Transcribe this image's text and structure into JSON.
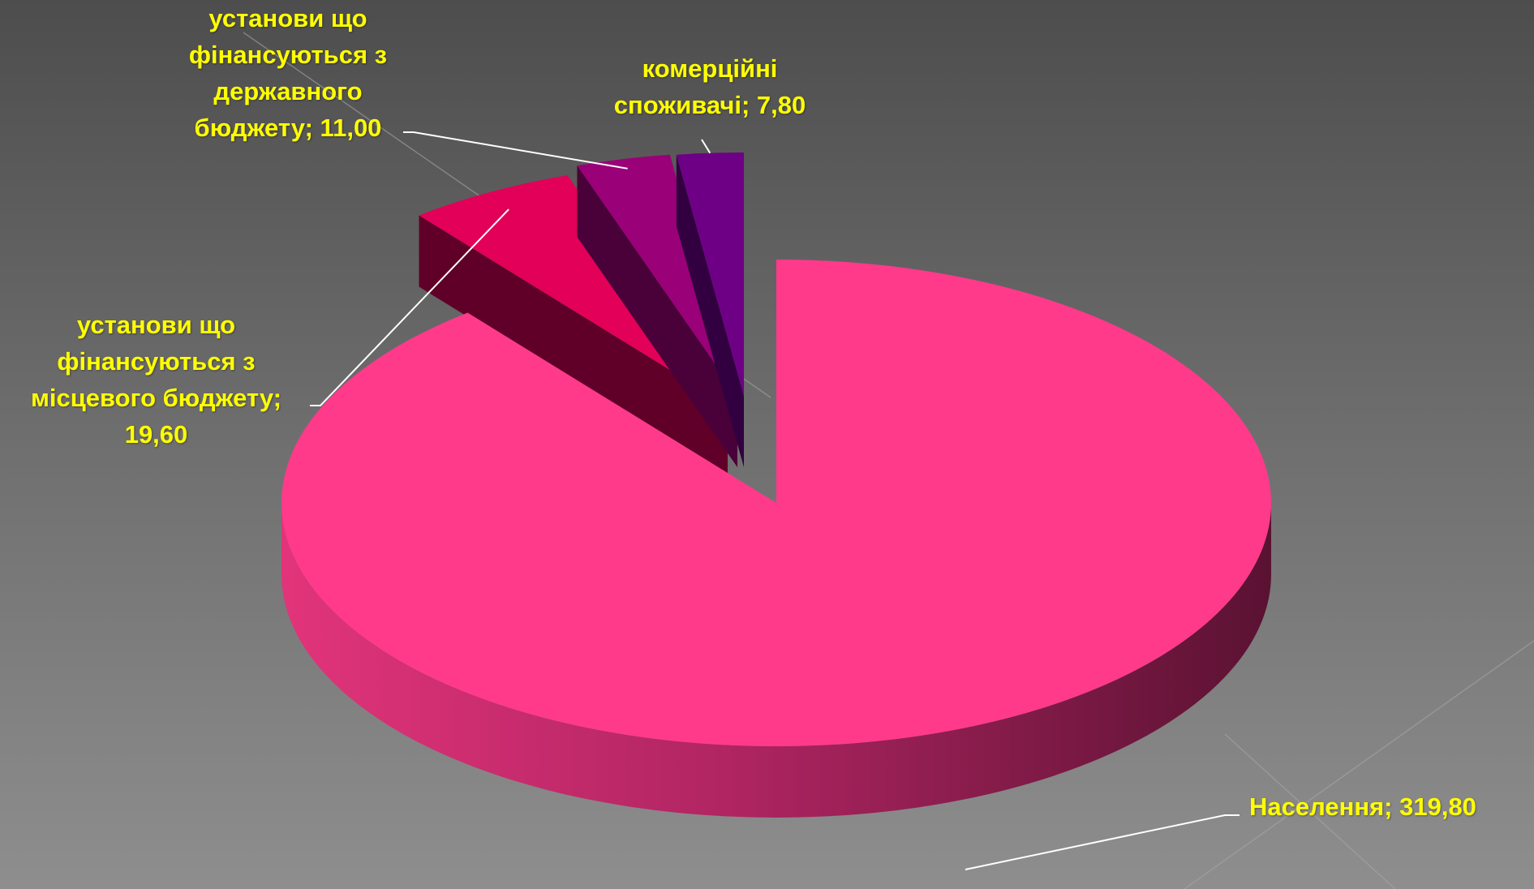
{
  "chart_data": {
    "type": "pie",
    "variant": "3d-exploded",
    "categories": [
      "Населення",
      "установи що фінансуються з місцевого бюджету",
      "установи що фінансуються з державного бюджету",
      "комерційні споживачі"
    ],
    "values": [
      319.8,
      19.6,
      11.0,
      7.8
    ],
    "data_labels": [
      [
        "Населення; 319,80"
      ],
      [
        "установи що",
        "фінансуються з",
        "місцевого бюджету;",
        "19,60"
      ],
      [
        "установи що",
        "фінансуються з",
        "державного",
        "бюджету; 11,00"
      ],
      [
        "комерційні",
        "споживачі; 7,80"
      ]
    ],
    "colors": [
      "#ff3a8a",
      "#e20058",
      "#9a0078",
      "#6e0086"
    ],
    "side_colors": [
      "#c62a6c",
      "#600028",
      "#4a0038",
      "#320040"
    ],
    "label_color": "#ffff00",
    "legend": "none",
    "grid": false
  }
}
